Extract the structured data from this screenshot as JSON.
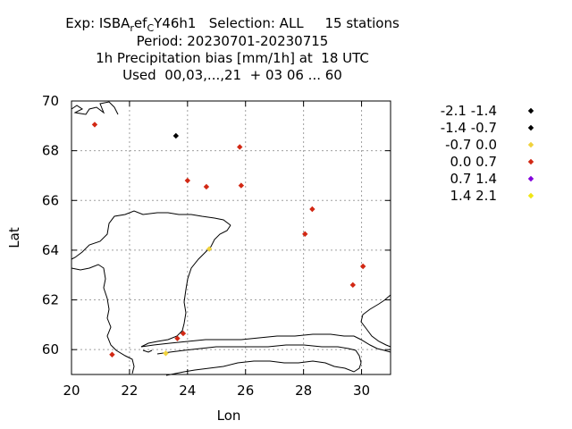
{
  "chart_data": {
    "type": "scatter",
    "title_lines": [
      "Exp: ISBA_ref_C Y46h1   Selection: ALL     15 stations",
      "Period: 20230701-20230715",
      "1h Precipitation bias [mm/1h] at  18 UTC",
      "Used  00,03,...,21  + 03 06 ... 60"
    ],
    "title_parts": {
      "exp_prefix": "Exp: ISBA",
      "exp_sub1": "r",
      "exp_mid": "ef",
      "exp_sub2": "C",
      "exp_suffix": "Y46h1   Selection: ALL     15 stations"
    },
    "xlabel": "Lon",
    "ylabel": "Lat",
    "xlim": [
      20,
      31
    ],
    "ylim": [
      59,
      70
    ],
    "xticks": [
      20,
      22,
      24,
      26,
      28,
      30
    ],
    "yticks": [
      60,
      62,
      64,
      66,
      68,
      70
    ],
    "grid": true,
    "legend_position": "right",
    "legend": [
      {
        "label": "-2.1 -1.4",
        "color": "#000000"
      },
      {
        "label": "-1.4 -0.7",
        "color": "#000000"
      },
      {
        "label": "-0.7 0.0",
        "color": "#f0d23c"
      },
      {
        "label": "0.0 0.7",
        "color": "#d22814"
      },
      {
        "label": "0.7 1.4",
        "color": "#8200dc"
      },
      {
        "label": "1.4 2.1",
        "color": "#f0e614"
      }
    ],
    "points": [
      {
        "lon": 20.8,
        "lat": 69.05,
        "cls": 3
      },
      {
        "lon": 23.6,
        "lat": 68.6,
        "cls": 1
      },
      {
        "lon": 25.8,
        "lat": 68.15,
        "cls": 3
      },
      {
        "lon": 24.0,
        "lat": 66.8,
        "cls": 3
      },
      {
        "lon": 24.65,
        "lat": 66.55,
        "cls": 3
      },
      {
        "lon": 25.85,
        "lat": 66.6,
        "cls": 3
      },
      {
        "lon": 28.3,
        "lat": 65.65,
        "cls": 3
      },
      {
        "lon": 28.05,
        "lat": 64.65,
        "cls": 3
      },
      {
        "lon": 24.75,
        "lat": 64.05,
        "cls": 2
      },
      {
        "lon": 30.05,
        "lat": 63.35,
        "cls": 3
      },
      {
        "lon": 29.7,
        "lat": 62.6,
        "cls": 3
      },
      {
        "lon": 23.85,
        "lat": 60.65,
        "cls": 3
      },
      {
        "lon": 23.65,
        "lat": 60.45,
        "cls": 3
      },
      {
        "lon": 21.4,
        "lat": 59.8,
        "cls": 3
      },
      {
        "lon": 23.25,
        "lat": 59.85,
        "cls": 2
      }
    ]
  }
}
